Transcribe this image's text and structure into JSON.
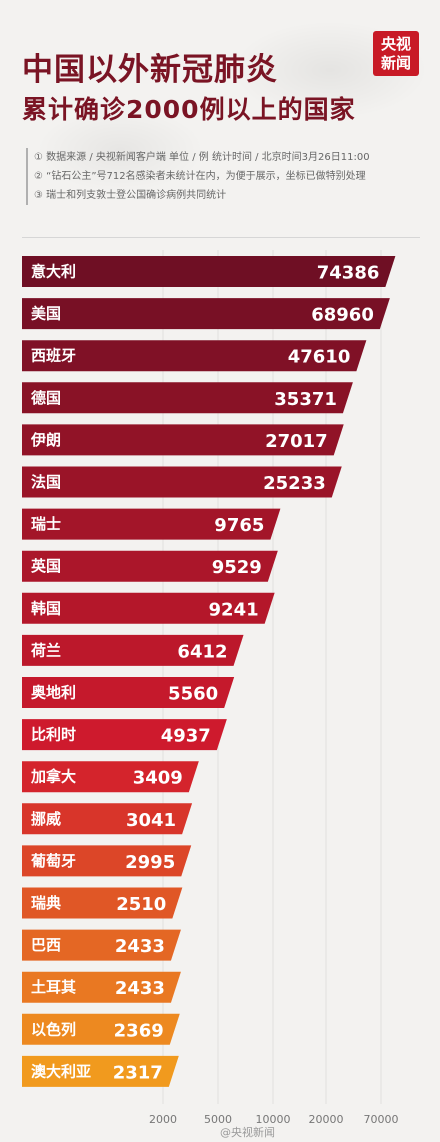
{
  "header": {
    "title": "中国以外新冠肺炎",
    "subtitle": "累计确诊2000例以上的国家",
    "logo_line1": "央视",
    "logo_line2": "新闻"
  },
  "notes": [
    "① 数据来源 / 央视新闻客户端 单位 / 例 统计时间 / 北京时间3月26日11:00",
    "② “钻石公主”号712名感染者未统计在内，为便于展示，坐标已做特别处理",
    "③ 瑞士和列支敦士登公国确诊病例共同统计"
  ],
  "watermark": "@央视新闻",
  "colors": {
    "brand_red": "#c81a26",
    "title": "#7a1424",
    "bar_top": "#6f0f24",
    "bar_mid": "#d11a2d",
    "bar_bottom": "#f19a1e"
  },
  "chart_data": {
    "type": "bar",
    "orientation": "horizontal",
    "scale": "nonlinear (log-like)",
    "categories": [
      "意大利",
      "美国",
      "西班牙",
      "德国",
      "伊朗",
      "法国",
      "瑞士",
      "英国",
      "韩国",
      "荷兰",
      "奥地利",
      "比利时",
      "加拿大",
      "挪威",
      "葡萄牙",
      "瑞典",
      "巴西",
      "土耳其",
      "以色列",
      "澳大利亚"
    ],
    "values": [
      74386,
      68960,
      47610,
      35371,
      27017,
      25233,
      9765,
      9529,
      9241,
      6412,
      5560,
      4937,
      3409,
      3041,
      2995,
      2510,
      2433,
      2433,
      2369,
      2317
    ],
    "x_ticks": [
      "2000",
      "5000",
      "10000",
      "20000",
      "70000"
    ],
    "title": "",
    "xlabel": "",
    "ylabel": ""
  }
}
